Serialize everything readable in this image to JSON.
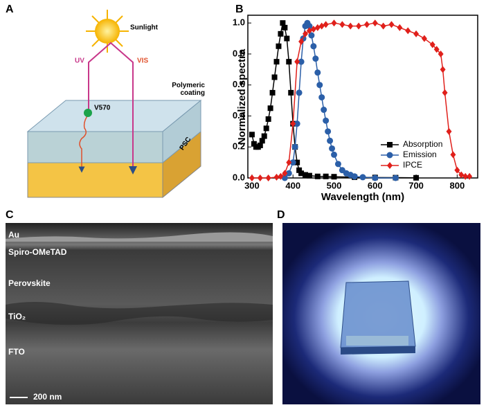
{
  "panels": {
    "a": {
      "letter": "A",
      "sunlight": "Sunlight",
      "uv": "UV",
      "vis": "VIS",
      "coating": "Polymeric coating",
      "dye": "V570",
      "cell": "PSC"
    },
    "c": {
      "letter": "C",
      "layers": [
        "Au",
        "Spiro-OMeTAD",
        "Perovskite",
        "TiO₂",
        "FTO"
      ],
      "scale_bar": "200 nm"
    },
    "d": {
      "letter": "D"
    }
  },
  "chart_data": {
    "type": "line",
    "panel_letter": "B",
    "x_label": "Wavelength (nm)",
    "y_label": "Normalized spectra",
    "xlim": [
      290,
      850
    ],
    "ylim": [
      0,
      1.05
    ],
    "xticks": [
      300,
      400,
      500,
      600,
      700,
      800
    ],
    "yticks": [
      {
        "value": 0,
        "label": "0.0"
      },
      0.2,
      0.4,
      0.6,
      0.8,
      {
        "value": 1,
        "label": "1.0"
      }
    ],
    "legend": "lower right",
    "series": [
      {
        "name": "Absorption",
        "color": "#000000",
        "marker": "square",
        "x": [
          300,
          305,
          310,
          315,
          320,
          325,
          330,
          335,
          340,
          345,
          350,
          355,
          360,
          365,
          370,
          375,
          380,
          385,
          390,
          395,
          400,
          405,
          410,
          415,
          420,
          430,
          440,
          460,
          480,
          500,
          550,
          600,
          650,
          700
        ],
        "values": [
          0.28,
          0.22,
          0.2,
          0.2,
          0.21,
          0.24,
          0.27,
          0.32,
          0.38,
          0.45,
          0.55,
          0.65,
          0.75,
          0.85,
          0.93,
          1.0,
          0.97,
          0.9,
          0.75,
          0.55,
          0.35,
          0.2,
          0.1,
          0.05,
          0.03,
          0.02,
          0.015,
          0.01,
          0.01,
          0.008,
          0.005,
          0.003,
          0.002,
          0.001
        ]
      },
      {
        "name": "Emission",
        "color": "#2b5fa8",
        "marker": "circle",
        "x": [
          380,
          390,
          400,
          405,
          410,
          415,
          420,
          425,
          430,
          435,
          440,
          445,
          450,
          455,
          460,
          465,
          470,
          475,
          480,
          485,
          490,
          495,
          500,
          510,
          520,
          530,
          540,
          550,
          570,
          600,
          650
        ],
        "values": [
          0,
          0.03,
          0.1,
          0.2,
          0.35,
          0.55,
          0.75,
          0.9,
          0.98,
          1.0,
          0.98,
          0.92,
          0.85,
          0.77,
          0.68,
          0.6,
          0.52,
          0.44,
          0.37,
          0.3,
          0.24,
          0.19,
          0.15,
          0.09,
          0.05,
          0.03,
          0.02,
          0.01,
          0.005,
          0,
          0
        ]
      },
      {
        "name": "IPCE",
        "color": "#e0201b",
        "marker": "diamond",
        "x": [
          300,
          320,
          340,
          360,
          370,
          380,
          390,
          400,
          410,
          420,
          430,
          440,
          450,
          460,
          470,
          480,
          500,
          520,
          540,
          560,
          580,
          600,
          620,
          640,
          660,
          680,
          700,
          720,
          740,
          750,
          760,
          765,
          770,
          780,
          790,
          800,
          810,
          820,
          830
        ],
        "values": [
          0,
          0,
          0,
          0.005,
          0.01,
          0.03,
          0.1,
          0.35,
          0.75,
          0.88,
          0.93,
          0.95,
          0.96,
          0.97,
          0.98,
          0.99,
          1.0,
          0.99,
          0.98,
          0.98,
          0.99,
          1.0,
          0.98,
          0.99,
          0.97,
          0.95,
          0.93,
          0.9,
          0.86,
          0.83,
          0.8,
          0.7,
          0.55,
          0.3,
          0.15,
          0.05,
          0.02,
          0.01,
          0.01
        ]
      }
    ]
  }
}
